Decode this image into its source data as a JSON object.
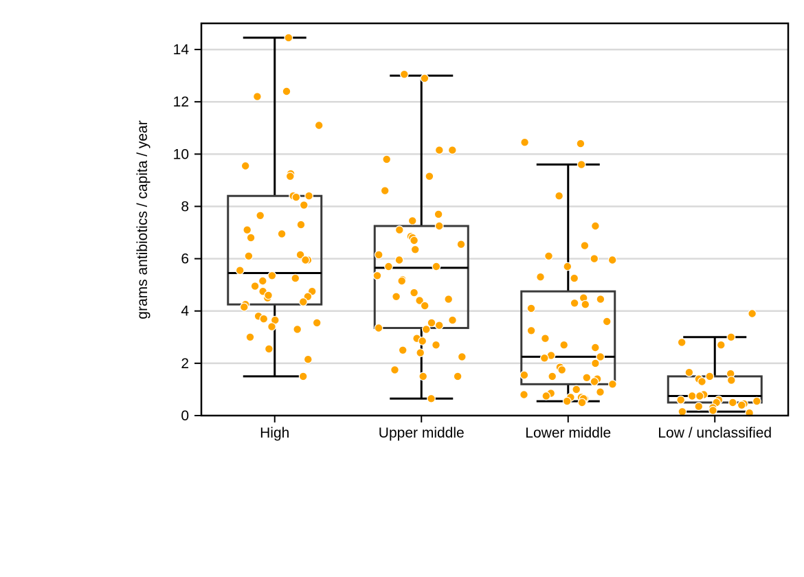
{
  "chart_data": {
    "type": "box",
    "ylabel": "grams antibiotics / capita / year",
    "xlabel": "",
    "ylim": [
      0,
      15
    ],
    "yticks": [
      0,
      2,
      4,
      6,
      8,
      10,
      12,
      14
    ],
    "categories": [
      "High",
      "Upper middle",
      "Lower middle",
      "Low / unclassified"
    ],
    "grid": "horizontal",
    "colors": {
      "points": "#FFA500",
      "box": "#3a3a3a",
      "whisker": "#000000",
      "grid": "#d9d9d9"
    },
    "boxes": [
      {
        "category": "High",
        "whisker_low": 1.5,
        "q1": 4.25,
        "median": 5.45,
        "q3": 8.4,
        "whisker_high": 14.45
      },
      {
        "category": "Upper middle",
        "whisker_low": 0.65,
        "q1": 3.35,
        "median": 5.65,
        "q3": 7.25,
        "whisker_high": 13.0
      },
      {
        "category": "Lower middle",
        "whisker_low": 0.55,
        "q1": 1.2,
        "median": 2.25,
        "q3": 4.75,
        "whisker_high": 9.6
      },
      {
        "category": "Low / unclassified",
        "whisker_low": 0.15,
        "q1": 0.5,
        "median": 0.75,
        "q3": 1.5,
        "whisker_high": 3.0
      }
    ],
    "points": [
      {
        "category": "High",
        "y": [
          14.45,
          12.2,
          12.4,
          11.1,
          9.25,
          9.15,
          9.55,
          8.4,
          8.4,
          8.05,
          8.35,
          7.65,
          7.3,
          7.1,
          6.95,
          6.8,
          6.1,
          6.15,
          5.95,
          5.95,
          5.55,
          5.35,
          5.25,
          5.15,
          4.95,
          4.75,
          4.75,
          4.55,
          4.5,
          4.6,
          4.35,
          4.25,
          4.15,
          3.8,
          3.7,
          3.65,
          3.55,
          3.4,
          3.3,
          3.0,
          2.55,
          2.15,
          1.5
        ]
      },
      {
        "category": "Upper middle",
        "y": [
          13.05,
          12.9,
          10.15,
          10.15,
          9.8,
          9.15,
          8.6,
          7.7,
          7.45,
          7.25,
          7.1,
          6.85,
          6.8,
          6.7,
          6.55,
          6.35,
          6.15,
          5.95,
          5.7,
          5.7,
          5.35,
          5.2,
          5.15,
          4.7,
          4.55,
          4.45,
          4.4,
          4.2,
          3.65,
          3.55,
          3.45,
          3.35,
          3.3,
          2.95,
          2.85,
          2.7,
          2.5,
          2.4,
          2.25,
          1.75,
          1.5,
          1.5,
          0.65
        ]
      },
      {
        "category": "Lower middle",
        "y": [
          10.45,
          10.4,
          9.6,
          8.4,
          7.25,
          6.5,
          6.1,
          6.0,
          5.95,
          5.7,
          5.3,
          5.25,
          4.5,
          4.45,
          4.3,
          4.25,
          4.1,
          3.6,
          3.25,
          2.95,
          2.7,
          2.6,
          2.3,
          2.25,
          2.2,
          2.0,
          1.85,
          1.75,
          1.55,
          1.5,
          1.45,
          1.4,
          1.3,
          1.2,
          1.0,
          0.9,
          0.85,
          0.8,
          0.75,
          0.7,
          0.7,
          0.65,
          0.65,
          0.55,
          0.5
        ]
      },
      {
        "category": "Low / unclassified",
        "y": [
          3.9,
          3.0,
          2.8,
          2.7,
          1.65,
          1.6,
          1.5,
          1.4,
          1.35,
          1.3,
          0.8,
          0.75,
          0.75,
          0.6,
          0.6,
          0.55,
          0.5,
          0.5,
          0.45,
          0.4,
          0.35,
          0.3,
          0.2,
          0.15,
          0.1
        ]
      }
    ]
  }
}
